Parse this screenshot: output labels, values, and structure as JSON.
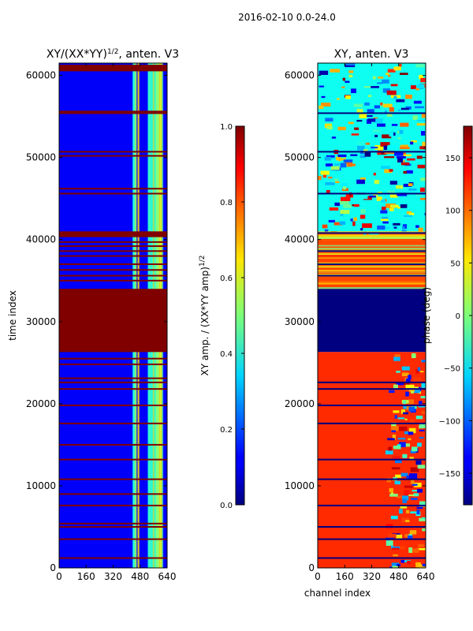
{
  "figure": {
    "suptitle": "2016-02-10 0.0-24.0"
  },
  "chart_data": [
    {
      "type": "heatmap",
      "title": "XY/(XX*YY)^{1/2}, anten. V3",
      "xlabel": "",
      "ylabel": "time index",
      "xlim": [
        0,
        640
      ],
      "ylim": [
        0,
        61500
      ],
      "xticks": [
        0,
        160,
        320,
        480,
        640
      ],
      "yticks": [
        0,
        10000,
        20000,
        30000,
        40000,
        50000,
        60000
      ],
      "colormap": "jet",
      "colorbar": {
        "label": "XY amp. / (XX*YY amp)^{1/2}",
        "range": [
          0.0,
          1.0
        ],
        "ticks": [
          0.0,
          0.2,
          0.4,
          0.6,
          0.8,
          1.0
        ],
        "tick_labels": [
          "0.0",
          "0.2",
          "0.4",
          "0.6",
          "0.8",
          "1.0"
        ]
      },
      "regions": [
        {
          "y0": 26300,
          "y1": 34000,
          "value": 1.0,
          "note": "saturated block"
        },
        {
          "y0": 40300,
          "y1": 41000,
          "value": 1.0
        },
        {
          "y0": 60500,
          "y1": 61300,
          "value": 1.0
        }
      ],
      "background_value": 0.12,
      "high_channel_band": {
        "x0": 430,
        "x1": 600,
        "value": 0.5
      },
      "flag_rows": [
        1200,
        3500,
        5000,
        5400,
        7600,
        9000,
        10800,
        13200,
        15000,
        17600,
        19800,
        21800,
        22600,
        23100,
        24800,
        25500,
        35000,
        35600,
        36300,
        37000,
        38000,
        38600,
        39200,
        39700,
        45600,
        46200,
        50200,
        50700,
        55400,
        55600
      ]
    },
    {
      "type": "heatmap",
      "title": "XY, anten. V3",
      "xlabel": "channel index",
      "ylabel": "",
      "xlim": [
        0,
        640
      ],
      "ylim": [
        0,
        61500
      ],
      "xticks": [
        0,
        160,
        320,
        480,
        640
      ],
      "yticks": [
        0,
        10000,
        20000,
        30000,
        40000,
        50000,
        60000
      ],
      "colormap": "jet",
      "colorbar": {
        "label": "phase (deg)",
        "range": [
          -180,
          180
        ],
        "ticks": [
          150,
          100,
          50,
          0,
          -50,
          -100,
          -150
        ],
        "tick_labels": [
          "150",
          "100",
          "50",
          "0",
          "−50",
          "−100",
          "−150"
        ]
      },
      "regions": [
        {
          "y0": 26300,
          "y1": 34000,
          "value": -180,
          "note": "constant phase block"
        },
        {
          "y0": 0,
          "y1": 26300,
          "value": 120,
          "note": "mostly warm phase"
        },
        {
          "y0": 34000,
          "y1": 41000,
          "value": 110,
          "note": "banded warm phase"
        },
        {
          "y0": 41000,
          "y1": 61500,
          "value": -40,
          "note": "noisy mixed phase"
        }
      ],
      "flag_rows": [
        1200,
        3500,
        5000,
        7600,
        10800,
        13200,
        17600,
        19800,
        21800,
        22600,
        35600,
        37000,
        38600,
        40800,
        45600,
        50700,
        55400
      ]
    }
  ]
}
